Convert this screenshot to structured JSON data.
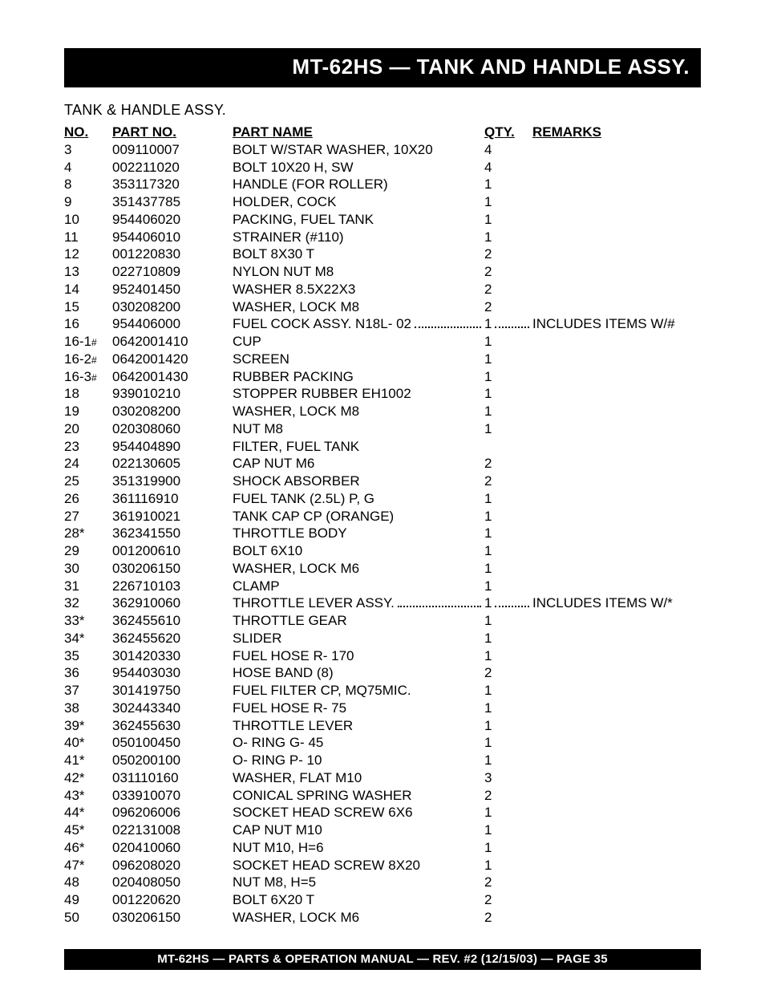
{
  "title_bar": "MT-62HS — TANK AND HANDLE ASSY.",
  "section_heading": "TANK & HANDLE ASSY.",
  "headers": {
    "no": "NO.",
    "part_no": "PART NO.",
    "part_name": "PART NAME",
    "qty": "QTY.",
    "remarks": "REMARKS"
  },
  "rows": [
    {
      "no": "3",
      "part": "009110007",
      "name": "BOLT W/STAR WASHER, 10X20",
      "qty": "4",
      "remarks": "",
      "leader": false,
      "suffix": ""
    },
    {
      "no": "4",
      "part": "002211020",
      "name": "BOLT 10X20 H, SW",
      "qty": "4",
      "remarks": "",
      "leader": false,
      "suffix": ""
    },
    {
      "no": "8",
      "part": "353117320",
      "name": "HANDLE (FOR ROLLER)",
      "qty": "1",
      "remarks": "",
      "leader": false,
      "suffix": ""
    },
    {
      "no": "9",
      "part": "351437785",
      "name": "HOLDER, COCK",
      "qty": "1",
      "remarks": "",
      "leader": false,
      "suffix": ""
    },
    {
      "no": "10",
      "part": "954406020",
      "name": "PACKING, FUEL TANK",
      "qty": "1",
      "remarks": "",
      "leader": false,
      "suffix": ""
    },
    {
      "no": "11",
      "part": "954406010",
      "name": "STRAINER (#110)",
      "qty": "1",
      "remarks": "",
      "leader": false,
      "suffix": ""
    },
    {
      "no": "12",
      "part": "001220830",
      "name": "BOLT 8X30 T",
      "qty": "2",
      "remarks": "",
      "leader": false,
      "suffix": ""
    },
    {
      "no": "13",
      "part": "022710809",
      "name": "NYLON NUT M8",
      "qty": "2",
      "remarks": "",
      "leader": false,
      "suffix": ""
    },
    {
      "no": "14",
      "part": "952401450",
      "name": "WASHER 8.5X22X3",
      "qty": "2",
      "remarks": "",
      "leader": false,
      "suffix": ""
    },
    {
      "no": "15",
      "part": "030208200",
      "name": "WASHER, LOCK M8",
      "qty": "2",
      "remarks": "",
      "leader": false,
      "suffix": ""
    },
    {
      "no": "16",
      "part": "954406000",
      "name": "FUEL COCK ASSY. N18L- 02",
      "qty": "1",
      "remarks": "INCLUDES ITEMS W/#",
      "leader": true,
      "suffix": ""
    },
    {
      "no": "16-1",
      "part": "0642001410",
      "name": "CUP",
      "qty": "1",
      "remarks": "",
      "leader": false,
      "suffix": "#"
    },
    {
      "no": "16-2",
      "part": "0642001420",
      "name": "SCREEN",
      "qty": "1",
      "remarks": "",
      "leader": false,
      "suffix": "#"
    },
    {
      "no": "16-3",
      "part": "0642001430",
      "name": "RUBBER PACKING",
      "qty": "1",
      "remarks": "",
      "leader": false,
      "suffix": "#"
    },
    {
      "no": "18",
      "part": "939010210",
      "name": "STOPPER RUBBER EH1002",
      "qty": "1",
      "remarks": "",
      "leader": false,
      "suffix": ""
    },
    {
      "no": "19",
      "part": "030208200",
      "name": "WASHER, LOCK M8",
      "qty": "1",
      "remarks": "",
      "leader": false,
      "suffix": ""
    },
    {
      "no": "20",
      "part": "020308060",
      "name": "NUT M8",
      "qty": "1",
      "remarks": "",
      "leader": false,
      "suffix": ""
    },
    {
      "no": "23",
      "part": "954404890",
      "name": "FILTER, FUEL TANK",
      "qty": "",
      "remarks": "",
      "leader": false,
      "suffix": ""
    },
    {
      "no": "24",
      "part": "022130605",
      "name": "CAP NUT M6",
      "qty": "2",
      "remarks": "",
      "leader": false,
      "suffix": ""
    },
    {
      "no": "25",
      "part": "351319900",
      "name": "SHOCK ABSORBER",
      "qty": "2",
      "remarks": "",
      "leader": false,
      "suffix": ""
    },
    {
      "no": "26",
      "part": "361116910",
      "name": "FUEL TANK (2.5L) P, G",
      "qty": "1",
      "remarks": "",
      "leader": false,
      "suffix": ""
    },
    {
      "no": "27",
      "part": "361910021",
      "name": "TANK CAP CP (ORANGE)",
      "qty": "1",
      "remarks": "",
      "leader": false,
      "suffix": ""
    },
    {
      "no": "28",
      "part": "362341550",
      "name": "THROTTLE BODY",
      "qty": "1",
      "remarks": "",
      "leader": false,
      "suffix": "*"
    },
    {
      "no": "29",
      "part": "001200610",
      "name": "BOLT 6X10",
      "qty": "1",
      "remarks": "",
      "leader": false,
      "suffix": ""
    },
    {
      "no": "30",
      "part": "030206150",
      "name": "WASHER, LOCK M6",
      "qty": "1",
      "remarks": "",
      "leader": false,
      "suffix": ""
    },
    {
      "no": "31",
      "part": "226710103",
      "name": "CLAMP",
      "qty": "1",
      "remarks": "",
      "leader": false,
      "suffix": ""
    },
    {
      "no": "32",
      "part": "362910060",
      "name": "THROTTLE LEVER ASSY.",
      "qty": "1",
      "remarks": "INCLUDES ITEMS W/*",
      "leader": true,
      "suffix": ""
    },
    {
      "no": "33",
      "part": "362455610",
      "name": "THROTTLE GEAR",
      "qty": "1",
      "remarks": "",
      "leader": false,
      "suffix": "*"
    },
    {
      "no": "34",
      "part": "362455620",
      "name": "SLIDER",
      "qty": "1",
      "remarks": "",
      "leader": false,
      "suffix": "*"
    },
    {
      "no": "35",
      "part": "301420330",
      "name": "FUEL HOSE R- 170",
      "qty": "1",
      "remarks": "",
      "leader": false,
      "suffix": ""
    },
    {
      "no": "36",
      "part": "954403030",
      "name": "HOSE BAND (8)",
      "qty": "2",
      "remarks": "",
      "leader": false,
      "suffix": ""
    },
    {
      "no": "37",
      "part": "301419750",
      "name": "FUEL FILTER CP, MQ75MIC.",
      "qty": "1",
      "remarks": "",
      "leader": false,
      "suffix": ""
    },
    {
      "no": "38",
      "part": "302443340",
      "name": "FUEL HOSE R- 75",
      "qty": "1",
      "remarks": "",
      "leader": false,
      "suffix": ""
    },
    {
      "no": "39",
      "part": "362455630",
      "name": "THROTTLE LEVER",
      "qty": "1",
      "remarks": "",
      "leader": false,
      "suffix": "*"
    },
    {
      "no": "40",
      "part": "050100450",
      "name": "O- RING G- 45",
      "qty": "1",
      "remarks": "",
      "leader": false,
      "suffix": "*"
    },
    {
      "no": "41",
      "part": "050200100",
      "name": "O- RING P- 10",
      "qty": "1",
      "remarks": "",
      "leader": false,
      "suffix": "*"
    },
    {
      "no": "42",
      "part": "031110160",
      "name": "WASHER, FLAT M10",
      "qty": "3",
      "remarks": "",
      "leader": false,
      "suffix": "*"
    },
    {
      "no": "43",
      "part": "033910070",
      "name": "CONICAL SPRING WASHER",
      "qty": "2",
      "remarks": "",
      "leader": false,
      "suffix": "*"
    },
    {
      "no": "44",
      "part": "096206006",
      "name": "SOCKET HEAD SCREW 6X6",
      "qty": "1",
      "remarks": "",
      "leader": false,
      "suffix": "*"
    },
    {
      "no": "45",
      "part": "022131008",
      "name": "CAP NUT M10",
      "qty": "1",
      "remarks": "",
      "leader": false,
      "suffix": "*"
    },
    {
      "no": "46",
      "part": "020410060",
      "name": "NUT M10, H=6",
      "qty": "1",
      "remarks": "",
      "leader": false,
      "suffix": "*"
    },
    {
      "no": "47",
      "part": "096208020",
      "name": "SOCKET HEAD SCREW 8X20",
      "qty": "1",
      "remarks": "",
      "leader": false,
      "suffix": "*"
    },
    {
      "no": "48",
      "part": "020408050",
      "name": "NUT M8, H=5",
      "qty": "2",
      "remarks": "",
      "leader": false,
      "suffix": ""
    },
    {
      "no": "49",
      "part": "001220620",
      "name": "BOLT 6X20 T",
      "qty": "2",
      "remarks": "",
      "leader": false,
      "suffix": ""
    },
    {
      "no": "50",
      "part": "030206150",
      "name": "WASHER, LOCK M6",
      "qty": "2",
      "remarks": "",
      "leader": false,
      "suffix": ""
    }
  ],
  "footer": "MT-62HS — PARTS & OPERATION MANUAL — REV. #2 (12/15/03) — PAGE 35"
}
